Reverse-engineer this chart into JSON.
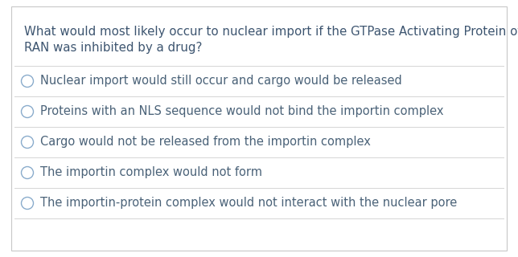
{
  "question_line1": "What would most likely occur to nuclear import if the GTPase Activating Protein of",
  "question_line2": "RAN was inhibited by a drug?",
  "options": [
    "Nuclear import would still occur and cargo would be released",
    "Proteins with an NLS sequence would not bind the importin complex",
    "Cargo would not be released from the importin complex",
    "The importin complex would not form",
    "The importin-protein complex would not interact with the nuclear pore"
  ],
  "bg_color": "#ffffff",
  "border_color": "#c8c8c8",
  "text_color": "#4a6278",
  "question_color": "#3d5570",
  "divider_color": "#d5d5d5",
  "circle_edge_color": "#8aaccc",
  "font_size_question": 10.8,
  "font_size_options": 10.5
}
